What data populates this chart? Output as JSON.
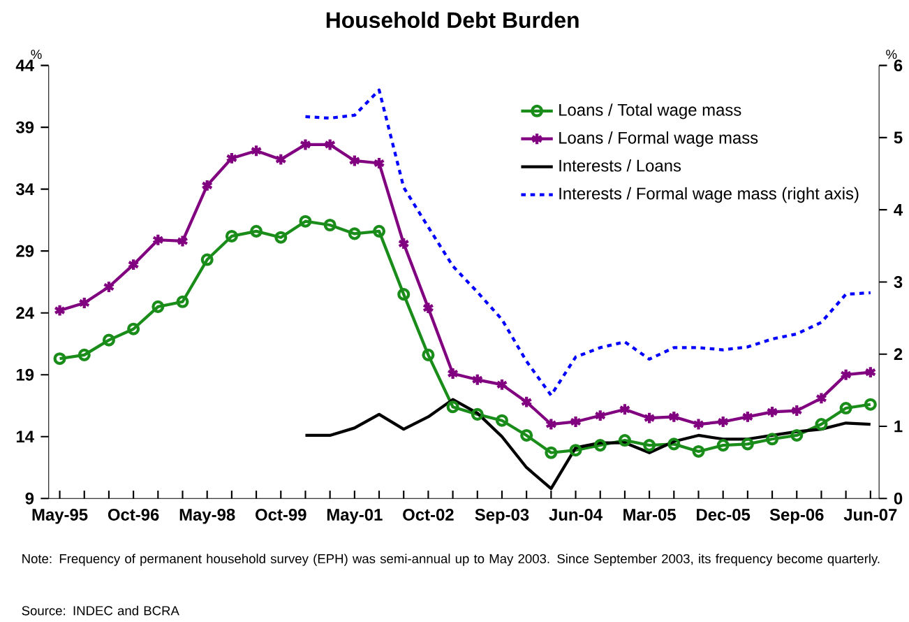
{
  "chart_data": {
    "type": "line",
    "title": "Household Debt Burden",
    "ylabel": "%",
    "y2label": "%",
    "categories": [
      "May-95",
      null,
      null,
      "Oct-96",
      null,
      null,
      "May-98",
      null,
      null,
      "Oct-99",
      null,
      null,
      "May-01",
      null,
      null,
      "Oct-02",
      null,
      null,
      "Sep-03",
      null,
      null,
      "Jun-04",
      null,
      null,
      "Mar-05",
      null,
      null,
      "Dec-05",
      null,
      null,
      "Sep-06",
      null,
      null,
      "Jun-07"
    ],
    "ylim": [
      9,
      44
    ],
    "yticks": [
      9,
      14,
      19,
      24,
      29,
      34,
      39,
      44
    ],
    "y2lim": [
      0,
      6
    ],
    "y2ticks": [
      0,
      1,
      2,
      3,
      4,
      5,
      6
    ],
    "legend": "top right",
    "grid": false,
    "series": [
      {
        "name": "Loans / Total wage mass",
        "color": "#1a8c1a",
        "marker": "circle",
        "line_style": "solid",
        "values": [
          20.3,
          20.6,
          21.8,
          22.7,
          24.5,
          24.9,
          28.3,
          30.2,
          30.6,
          30.1,
          31.4,
          31.1,
          30.4,
          30.6,
          25.5,
          20.6,
          16.4,
          15.8,
          15.3,
          14.1,
          12.7,
          12.9,
          13.3,
          13.7,
          13.3,
          13.4,
          12.8,
          13.3,
          13.4,
          13.8,
          14.1,
          15.0,
          16.3,
          16.6
        ]
      },
      {
        "name": "Loans / Formal wage mass",
        "color": "#800080",
        "marker": "cross",
        "line_style": "solid",
        "values": [
          24.2,
          24.8,
          26.1,
          27.9,
          29.9,
          29.8,
          34.3,
          36.5,
          37.1,
          36.4,
          37.6,
          37.6,
          36.3,
          36.1,
          29.6,
          24.4,
          19.1,
          18.6,
          18.2,
          16.8,
          15.0,
          15.2,
          15.7,
          16.2,
          15.5,
          15.6,
          15.0,
          15.2,
          15.6,
          16.0,
          16.1,
          17.1,
          19.0,
          19.2
        ]
      },
      {
        "name": "Interests / Loans",
        "color": "#000000",
        "marker": "none",
        "line_style": "solid",
        "values": [
          null,
          null,
          null,
          null,
          null,
          null,
          null,
          null,
          null,
          null,
          14.1,
          14.1,
          14.7,
          15.8,
          14.6,
          15.6,
          17.0,
          15.9,
          14.0,
          11.5,
          9.8,
          13.1,
          13.5,
          13.5,
          12.7,
          13.6,
          14.1,
          13.8,
          13.8,
          14.1,
          14.4,
          14.6,
          15.1,
          15.0
        ]
      },
      {
        "name": "Interests / Formal wage mass (right axis)",
        "color": "#0000ff",
        "marker": "none",
        "line_style": "dashed",
        "axis": "y2",
        "values": [
          null,
          null,
          null,
          null,
          null,
          null,
          null,
          null,
          null,
          null,
          5.29,
          5.27,
          5.31,
          5.66,
          4.31,
          3.76,
          3.22,
          2.86,
          2.48,
          1.9,
          1.43,
          1.96,
          2.09,
          2.17,
          1.93,
          2.09,
          2.09,
          2.06,
          2.1,
          2.21,
          2.28,
          2.44,
          2.83,
          2.85
        ]
      }
    ],
    "annotations": [
      "Note: Frequency of permanent household survey (EPH) was semi-annual up to May 2003. Since September 2003, its frequency become quarterly.",
      "Source: INDEC and BCRA"
    ]
  }
}
